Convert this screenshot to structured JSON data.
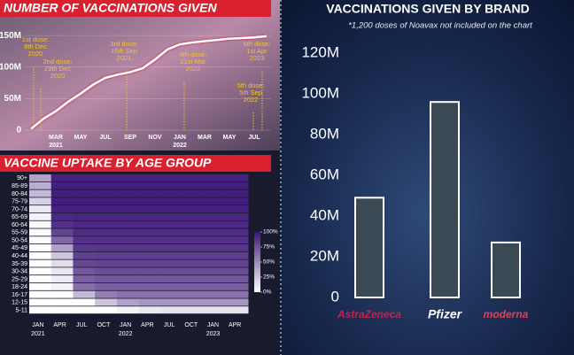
{
  "chart_data": [
    {
      "type": "line",
      "title": "NUMBER OF VACCINATIONS GIVEN",
      "categories": [
        null,
        null,
        "MAR",
        null,
        "MAY",
        null,
        "JUL",
        null,
        "SEP",
        null,
        "NOV",
        null,
        "JAN",
        null,
        "MAR",
        null,
        "MAY",
        null,
        "JUL",
        null
      ],
      "x_year_labels": [
        null,
        null,
        "2021",
        null,
        null,
        null,
        null,
        null,
        null,
        null,
        null,
        null,
        "2022",
        null,
        null,
        null,
        null,
        null,
        null,
        null
      ],
      "values": [
        2000000,
        18000000,
        30000000,
        45000000,
        58000000,
        72000000,
        83000000,
        88000000,
        92000000,
        98000000,
        112000000,
        128000000,
        136000000,
        139000000,
        141000000,
        143000000,
        145000000,
        146000000,
        147000000,
        149000000
      ],
      "color": "#ffffff",
      "ylim": [
        0,
        160000000
      ],
      "yticks": [
        0,
        {
          "value": 50000000,
          "label": "50M"
        },
        {
          "value": 100000000,
          "label": "100M"
        },
        {
          "value": 150000000,
          "label": "150M"
        }
      ],
      "annotations": [
        {
          "lines": [
            "1st dose:",
            "8th Dec",
            "2020"
          ]
        },
        {
          "lines": [
            "2nd dose:",
            "29th Dec",
            "2020"
          ]
        },
        {
          "lines": [
            "3rd dose:",
            "16th Sep",
            "2021"
          ]
        },
        {
          "lines": [
            "4th dose:",
            "21st Mar",
            "2022"
          ]
        },
        {
          "lines": [
            "5th dose:",
            "5th Sep",
            "2022"
          ]
        },
        {
          "lines": [
            "6th dose:",
            "1st Apr",
            "2023"
          ]
        }
      ]
    },
    {
      "type": "heatmap",
      "title": "VACCINE UPTAKE BY AGE GROUP",
      "categories": [
        "JAN",
        "APR",
        "JUL",
        "OCT",
        "JAN",
        "APR",
        "JUL",
        "OCT",
        "JAN",
        "APR"
      ],
      "x_year_labels": [
        "2021",
        null,
        null,
        null,
        "2022",
        null,
        null,
        null,
        "2023",
        null
      ],
      "rows": [
        "90+",
        "85-89",
        "80-84",
        "75-79",
        "70-74",
        "65-69",
        "60-64",
        "55-59",
        "50-54",
        "45-49",
        "40-44",
        "35-39",
        "30-34",
        "25-29",
        "18-24",
        "16-17",
        "12-15",
        "5-11"
      ],
      "values": [
        [
          40,
          95,
          95,
          95,
          95,
          95,
          95,
          95,
          95,
          95
        ],
        [
          35,
          96,
          96,
          96,
          96,
          96,
          96,
          96,
          96,
          96
        ],
        [
          30,
          96,
          96,
          96,
          96,
          96,
          96,
          96,
          96,
          96
        ],
        [
          20,
          96,
          96,
          96,
          96,
          96,
          96,
          96,
          96,
          96
        ],
        [
          10,
          95,
          95,
          95,
          95,
          95,
          95,
          95,
          95,
          95
        ],
        [
          5,
          92,
          93,
          93,
          93,
          93,
          93,
          93,
          93,
          93
        ],
        [
          3,
          88,
          92,
          92,
          92,
          92,
          92,
          92,
          92,
          92
        ],
        [
          2,
          80,
          90,
          90,
          90,
          90,
          90,
          90,
          90,
          90
        ],
        [
          2,
          65,
          88,
          88,
          88,
          88,
          88,
          88,
          88,
          88
        ],
        [
          1,
          40,
          85,
          86,
          86,
          86,
          86,
          86,
          86,
          86
        ],
        [
          1,
          25,
          82,
          83,
          83,
          83,
          83,
          83,
          83,
          83
        ],
        [
          1,
          15,
          78,
          80,
          80,
          80,
          80,
          80,
          80,
          80
        ],
        [
          0,
          10,
          72,
          76,
          76,
          76,
          76,
          76,
          76,
          76
        ],
        [
          0,
          8,
          68,
          72,
          72,
          72,
          72,
          72,
          72,
          72
        ],
        [
          0,
          5,
          62,
          68,
          68,
          68,
          68,
          68,
          68,
          68
        ],
        [
          0,
          0,
          30,
          55,
          60,
          60,
          60,
          60,
          60,
          60
        ],
        [
          0,
          0,
          0,
          25,
          40,
          45,
          45,
          45,
          45,
          45
        ],
        [
          0,
          0,
          0,
          0,
          5,
          10,
          12,
          12,
          12,
          12
        ]
      ],
      "colors": [
        "#ffffff",
        "#3b1578"
      ],
      "colorbar_lim": [
        0,
        100
      ],
      "colorbar_ticks": [
        {
          "value": 0,
          "label": "0%"
        },
        {
          "value": 25,
          "label": "25%"
        },
        {
          "value": 50,
          "label": "50%"
        },
        {
          "value": 75,
          "label": "75%"
        },
        {
          "value": 100,
          "label": "100%"
        }
      ]
    },
    {
      "type": "bar",
      "title": "VACCINATIONS GIVEN BY BRAND",
      "subtitle": "*1,200 doses of Noavax not included on the chart",
      "categories": [
        "AstraZeneca",
        "Pfizer",
        "moderna"
      ],
      "values": [
        49000000,
        96000000,
        27000000
      ],
      "color": "#3b4954",
      "ylim": [
        0,
        120000000
      ],
      "yticks": [
        0,
        {
          "value": 20000000,
          "label": "20M"
        },
        {
          "value": 40000000,
          "label": "40M"
        },
        {
          "value": 60000000,
          "label": "60M"
        },
        {
          "value": 80000000,
          "label": "80M"
        },
        {
          "value": 100000000,
          "label": "100M"
        },
        {
          "value": 120000000,
          "label": "120M"
        }
      ]
    }
  ]
}
